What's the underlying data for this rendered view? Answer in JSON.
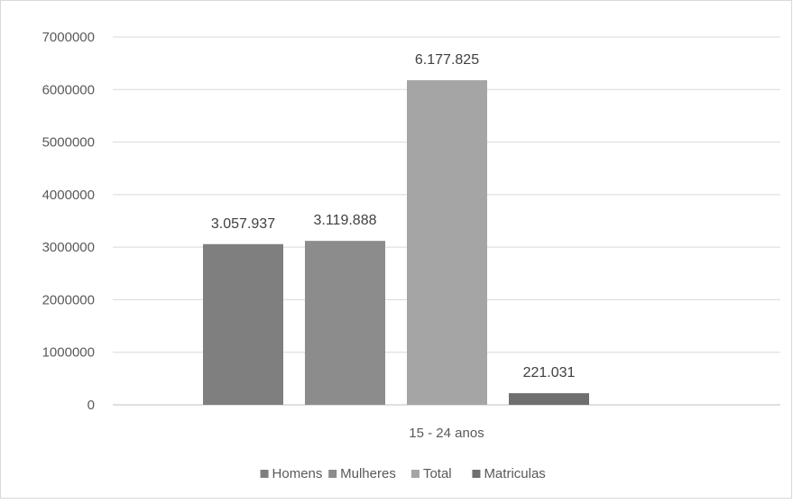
{
  "chart_data": {
    "type": "bar",
    "title": "",
    "xlabel": "",
    "ylabel": "",
    "categories": [
      "15 - 24 anos"
    ],
    "ylim": [
      0,
      7000000
    ],
    "yticks": [
      0,
      1000000,
      2000000,
      3000000,
      4000000,
      5000000,
      6000000,
      7000000
    ],
    "ytick_labels": [
      "0",
      "1000000",
      "2000000",
      "3000000",
      "4000000",
      "5000000",
      "6000000",
      "7000000"
    ],
    "grid": true,
    "legend_position": "bottom",
    "series": [
      {
        "name": "Homens",
        "values": [
          3057937
        ],
        "label": "3.057.937",
        "color": "#7f7f7f"
      },
      {
        "name": "Mulheres",
        "values": [
          3119888
        ],
        "label": "3.119.888",
        "color": "#8c8c8c"
      },
      {
        "name": "Total",
        "values": [
          6177825
        ],
        "label": "6.177.825",
        "color": "#a5a5a5"
      },
      {
        "name": "Matriculas",
        "values": [
          221031
        ],
        "label": "221.031",
        "color": "#6f6f6f"
      }
    ]
  }
}
